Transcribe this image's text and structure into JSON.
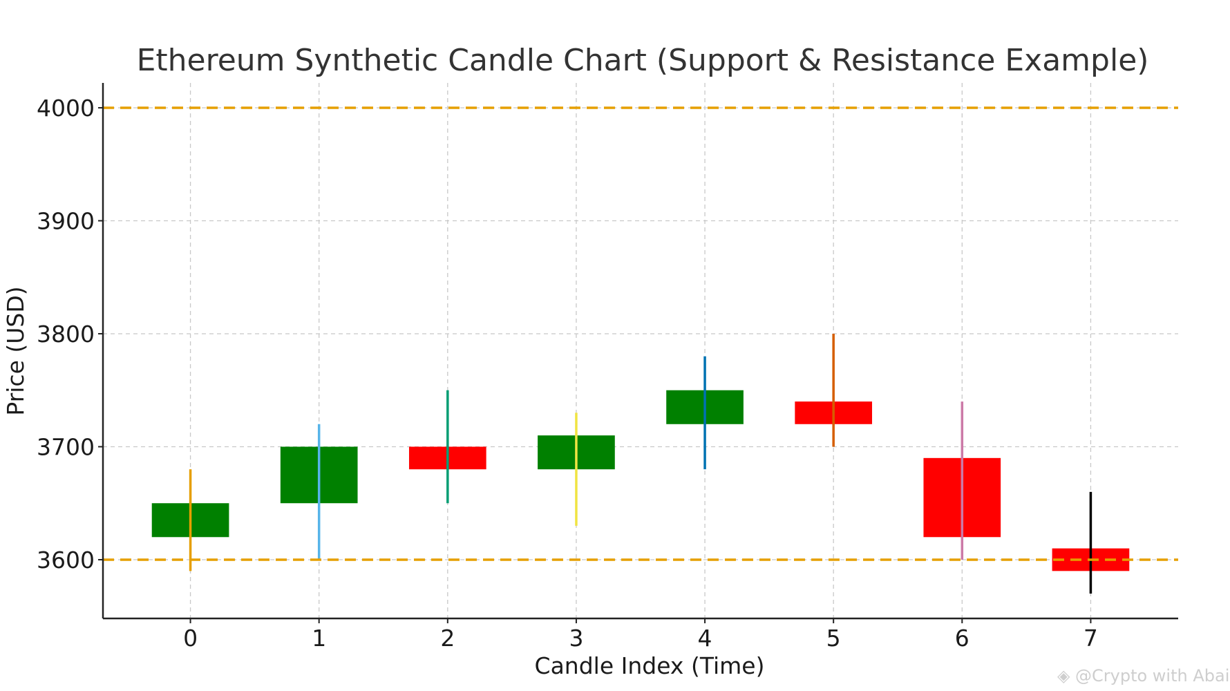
{
  "chart_data": {
    "type": "candlestick",
    "title": "Ethereum Synthetic Candle Chart (Support & Resistance Example)",
    "xlabel": "Candle Index (Time)",
    "ylabel": "Price (USD)",
    "xlim": [
      -0.68,
      7.68
    ],
    "ylim": [
      3548,
      4022
    ],
    "x_ticks": [
      "0",
      "1",
      "2",
      "3",
      "4",
      "5",
      "6",
      "7"
    ],
    "y_ticks": [
      "3600",
      "3700",
      "3800",
      "3900",
      "4000"
    ],
    "y_tick_values": [
      3600,
      3700,
      3800,
      3900,
      4000
    ],
    "grid": true,
    "candles": [
      {
        "x": 0,
        "open": 3620,
        "close": 3650,
        "high": 3680,
        "low": 3590,
        "body_color": "#008000",
        "wick_color": "#e69f00"
      },
      {
        "x": 1,
        "open": 3650,
        "close": 3700,
        "high": 3720,
        "low": 3600,
        "body_color": "#008000",
        "wick_color": "#56b4e9"
      },
      {
        "x": 2,
        "open": 3700,
        "close": 3680,
        "high": 3750,
        "low": 3650,
        "body_color": "#ff0000",
        "wick_color": "#009e73"
      },
      {
        "x": 3,
        "open": 3680,
        "close": 3710,
        "high": 3730,
        "low": 3630,
        "body_color": "#008000",
        "wick_color": "#f0e442"
      },
      {
        "x": 4,
        "open": 3720,
        "close": 3750,
        "high": 3780,
        "low": 3680,
        "body_color": "#008000",
        "wick_color": "#0072b2"
      },
      {
        "x": 5,
        "open": 3740,
        "close": 3720,
        "high": 3800,
        "low": 3700,
        "body_color": "#ff0000",
        "wick_color": "#d55e00"
      },
      {
        "x": 6,
        "open": 3690,
        "close": 3620,
        "high": 3740,
        "low": 3600,
        "body_color": "#ff0000",
        "wick_color": "#cc79a7"
      },
      {
        "x": 7,
        "open": 3610,
        "close": 3590,
        "high": 3660,
        "low": 3570,
        "body_color": "#ff0000",
        "wick_color": "#000000"
      }
    ],
    "levels": [
      {
        "value": 4000,
        "color": "#e69f00"
      },
      {
        "value": 3600,
        "color": "#e69f00"
      }
    ]
  },
  "watermark": "@Crypto with Abaid"
}
